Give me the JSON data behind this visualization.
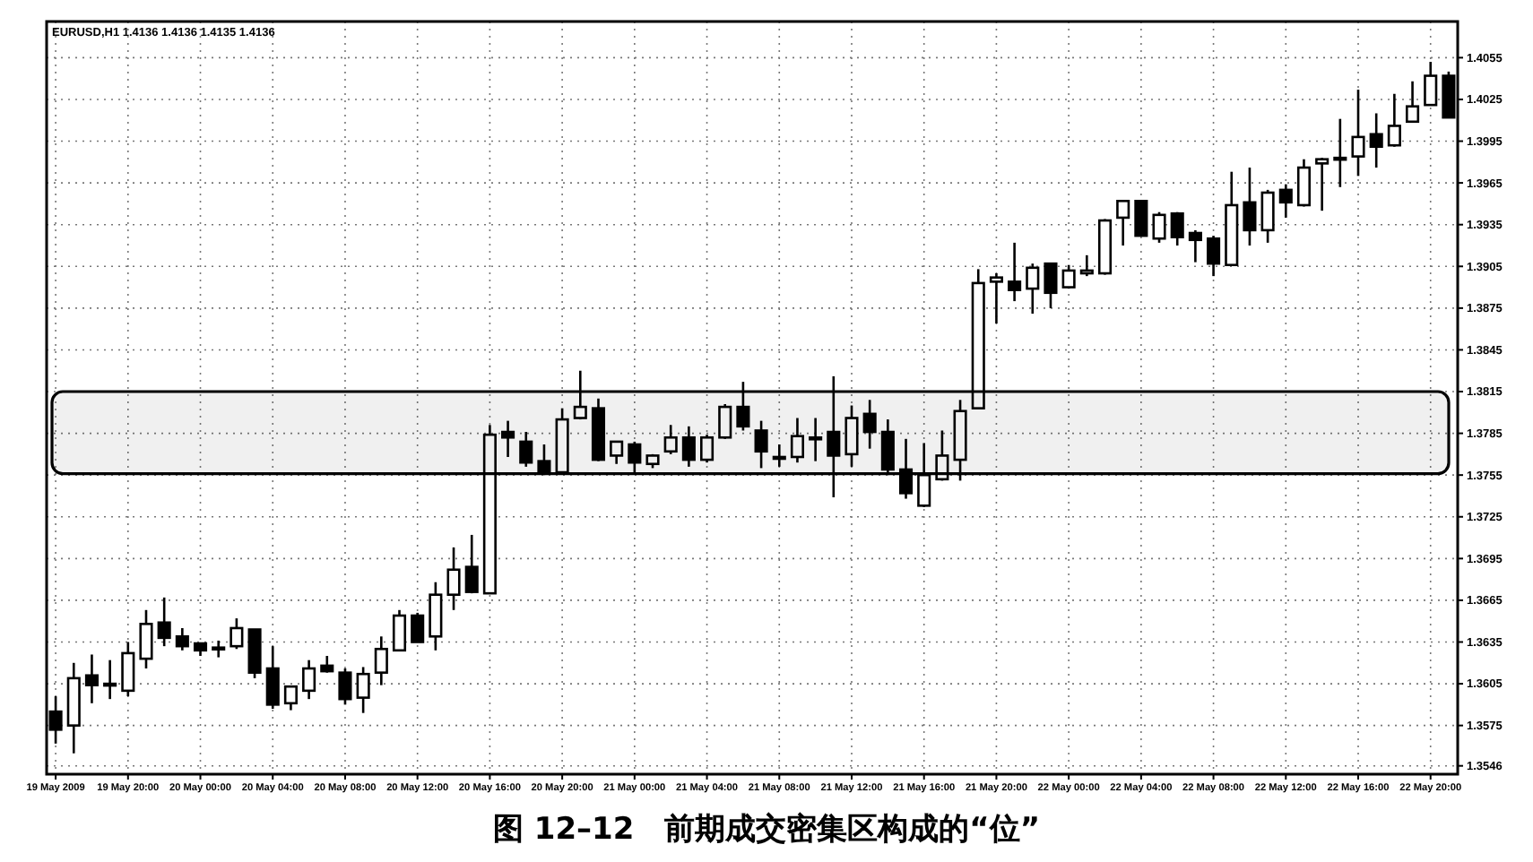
{
  "chart_data": {
    "type": "candlestick",
    "title": "图 12–12　前期成交密集区构成的“位”",
    "subtitle": "EURUSD,H1 1.4136 1.4136 1.4135 1.4136",
    "categories": [
      "19 May 2009",
      null,
      null,
      null,
      "19 May 20:00",
      null,
      null,
      null,
      "20 May 00:00",
      null,
      null,
      null,
      "20 May 04:00",
      null,
      null,
      null,
      "20 May 08:00",
      null,
      null,
      null,
      "20 May 12:00",
      null,
      null,
      null,
      "20 May 16:00",
      null,
      null,
      null,
      "20 May 20:00",
      null,
      null,
      null,
      "21 May 00:00",
      null,
      null,
      null,
      "21 May 04:00",
      null,
      null,
      null,
      "21 May 08:00",
      null,
      null,
      null,
      "21 May 12:00",
      null,
      null,
      null,
      "21 May 16:00",
      null,
      null,
      null,
      "21 May 20:00",
      null,
      null,
      null,
      "22 May 00:00",
      null,
      null,
      null,
      "22 May 04:00",
      null,
      null,
      null,
      "22 May 08:00",
      null,
      null,
      null,
      "22 May 12:00",
      null,
      null,
      null,
      "22 May 16:00",
      null,
      null,
      null,
      "22 May 20:00",
      null
    ],
    "ohlc": [
      [
        1.3585,
        1.3596,
        1.3562,
        1.3572
      ],
      [
        1.3575,
        1.362,
        1.3555,
        1.3609
      ],
      [
        1.3611,
        1.3626,
        1.3591,
        1.3604
      ],
      [
        1.3604,
        1.3622,
        1.3594,
        1.3605
      ],
      [
        1.36,
        1.3635,
        1.3596,
        1.3627
      ],
      [
        1.3623,
        1.3658,
        1.3616,
        1.3648
      ],
      [
        1.3649,
        1.3667,
        1.3632,
        1.3638
      ],
      [
        1.3639,
        1.3645,
        1.3629,
        1.3632
      ],
      [
        1.3634,
        1.3634,
        1.3625,
        1.3629
      ],
      [
        1.363,
        1.3636,
        1.3624,
        1.3631
      ],
      [
        1.3632,
        1.3652,
        1.363,
        1.3645
      ],
      [
        1.3644,
        1.3644,
        1.3609,
        1.3613
      ],
      [
        1.3616,
        1.3632,
        1.3587,
        1.359
      ],
      [
        1.3591,
        1.3603,
        1.3586,
        1.3603
      ],
      [
        1.36,
        1.3622,
        1.3594,
        1.3616
      ],
      [
        1.3618,
        1.3625,
        1.3613,
        1.3614
      ],
      [
        1.3613,
        1.3616,
        1.359,
        1.3594
      ],
      [
        1.3595,
        1.3617,
        1.3584,
        1.3612
      ],
      [
        1.3613,
        1.3639,
        1.3604,
        1.363
      ],
      [
        1.3629,
        1.3658,
        1.3629,
        1.3654
      ],
      [
        1.3654,
        1.3656,
        1.3635,
        1.3635
      ],
      [
        1.3639,
        1.3678,
        1.3629,
        1.3669
      ],
      [
        1.3669,
        1.3703,
        1.3658,
        1.3687
      ],
      [
        1.3689,
        1.3712,
        1.367,
        1.3671
      ],
      [
        1.367,
        1.3791,
        1.367,
        1.3784
      ],
      [
        1.3786,
        1.3794,
        1.3768,
        1.3782
      ],
      [
        1.3779,
        1.3786,
        1.3761,
        1.3764
      ],
      [
        1.3765,
        1.3777,
        1.3755,
        1.3757
      ],
      [
        1.3757,
        1.3803,
        1.3756,
        1.3795
      ],
      [
        1.3796,
        1.383,
        1.3795,
        1.3804
      ],
      [
        1.3803,
        1.381,
        1.3765,
        1.3766
      ],
      [
        1.3769,
        1.3779,
        1.3763,
        1.3779
      ],
      [
        1.3777,
        1.3779,
        1.3757,
        1.3764
      ],
      [
        1.3763,
        1.377,
        1.376,
        1.3769
      ],
      [
        1.3772,
        1.3791,
        1.377,
        1.3782
      ],
      [
        1.3782,
        1.379,
        1.3761,
        1.3766
      ],
      [
        1.3766,
        1.3784,
        1.3764,
        1.3782
      ],
      [
        1.3782,
        1.3806,
        1.3781,
        1.3804
      ],
      [
        1.3804,
        1.3822,
        1.3787,
        1.379
      ],
      [
        1.3787,
        1.3794,
        1.376,
        1.3772
      ],
      [
        1.3768,
        1.3777,
        1.3761,
        1.3768
      ],
      [
        1.3768,
        1.3796,
        1.3764,
        1.3783
      ],
      [
        1.3782,
        1.3796,
        1.3765,
        1.3781
      ],
      [
        1.3786,
        1.3826,
        1.3739,
        1.3769
      ],
      [
        1.377,
        1.3805,
        1.3761,
        1.3796
      ],
      [
        1.3799,
        1.3809,
        1.3774,
        1.3786
      ],
      [
        1.3786,
        1.3795,
        1.3755,
        1.3759
      ],
      [
        1.3759,
        1.3781,
        1.3738,
        1.3742
      ],
      [
        1.3733,
        1.3778,
        1.3732,
        1.3755
      ],
      [
        1.3752,
        1.3787,
        1.3751,
        1.3769
      ],
      [
        1.3766,
        1.3809,
        1.3751,
        1.3801
      ],
      [
        1.3803,
        1.3903,
        1.3803,
        1.3893
      ],
      [
        1.3894,
        1.39,
        1.3864,
        1.3897
      ],
      [
        1.3894,
        1.3922,
        1.388,
        1.3888
      ],
      [
        1.3889,
        1.3907,
        1.3871,
        1.3904
      ],
      [
        1.3907,
        1.3907,
        1.3875,
        1.3886
      ],
      [
        1.389,
        1.3906,
        1.3889,
        1.3902
      ],
      [
        1.39,
        1.3913,
        1.3898,
        1.3902
      ],
      [
        1.39,
        1.3939,
        1.3899,
        1.3938
      ],
      [
        1.394,
        1.3952,
        1.392,
        1.3952
      ],
      [
        1.3952,
        1.3952,
        1.3927,
        1.3927
      ],
      [
        1.3925,
        1.3944,
        1.3922,
        1.3942
      ],
      [
        1.3943,
        1.3944,
        1.392,
        1.3926
      ],
      [
        1.3929,
        1.3931,
        1.3908,
        1.3924
      ],
      [
        1.3925,
        1.3927,
        1.3898,
        1.3907
      ],
      [
        1.3906,
        1.3973,
        1.3906,
        1.3949
      ],
      [
        1.3951,
        1.3976,
        1.392,
        1.3931
      ],
      [
        1.3931,
        1.396,
        1.3922,
        1.3958
      ],
      [
        1.396,
        1.3964,
        1.394,
        1.3951
      ],
      [
        1.3949,
        1.3982,
        1.3948,
        1.3976
      ],
      [
        1.3979,
        1.3983,
        1.3945,
        1.3982
      ],
      [
        1.3983,
        1.4011,
        1.3962,
        1.3982
      ],
      [
        1.3984,
        1.4032,
        1.397,
        1.3998
      ],
      [
        1.4,
        1.4015,
        1.3976,
        1.3991
      ],
      [
        1.3992,
        1.4029,
        1.3991,
        1.4006
      ],
      [
        1.4009,
        1.4038,
        1.4009,
        1.402
      ],
      [
        1.4021,
        1.4052,
        1.4021,
        1.4042
      ],
      [
        1.4042,
        1.4045,
        1.4012,
        1.4012
      ]
    ],
    "ylim": [
      1.354,
      1.4081
    ],
    "yticks": [
      1.4055,
      1.4025,
      1.3995,
      1.3965,
      1.3935,
      1.3905,
      1.3875,
      1.3845,
      1.3815,
      1.3785,
      1.3755,
      1.3725,
      1.3695,
      1.3665,
      1.3635,
      1.3605,
      1.3575,
      1.3546
    ],
    "grid": true,
    "bands": [
      {
        "axis": "y",
        "from": 1.3756,
        "to": 1.3815,
        "color": "#000000"
      }
    ]
  }
}
